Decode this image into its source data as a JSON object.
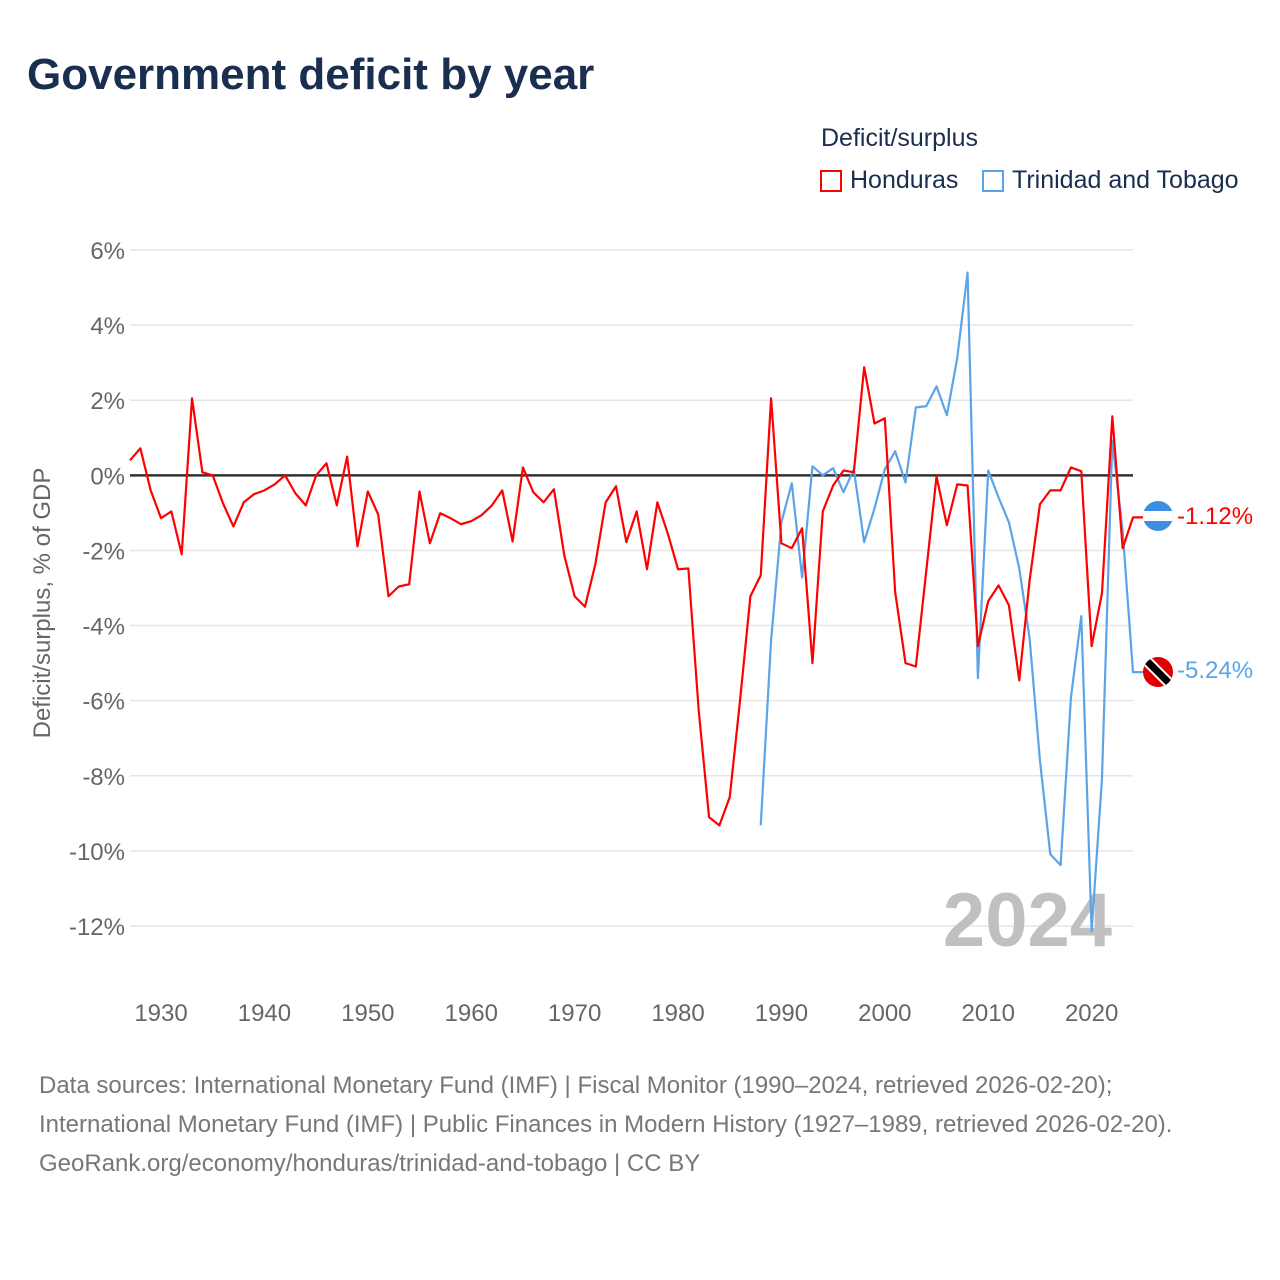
{
  "title": "Government deficit by year",
  "legend": {
    "title": "Deficit/surplus"
  },
  "colors": {
    "Honduras": "#ff0000",
    "Trinidad and Tobago": "#5ba4e8"
  },
  "year_watermark": "2024",
  "end_labels": {
    "Honduras": "-1.12%",
    "Trinidad and Tobago": "-5.24%"
  },
  "footer": {
    "sources": "Data sources: International Monetary Fund (IMF) | Fiscal Monitor (1990–2024, retrieved 2026-02-20); International Monetary Fund (IMF) | Public Finances in Modern History (1927–1989, retrieved 2026-02-20).",
    "credit": "GeoRank.org/economy/honduras/trinidad-and-tobago | CC BY"
  },
  "chart_data": {
    "type": "line",
    "title": "Government deficit by year",
    "xlabel": "",
    "ylabel": "Deficit/surplus, % of GDP",
    "xlim": [
      1927,
      2024
    ],
    "ylim": [
      -12,
      6
    ],
    "xticks": [
      1930,
      1940,
      1950,
      1960,
      1970,
      1980,
      1990,
      2000,
      2010,
      2020
    ],
    "yticks": [
      6,
      4,
      2,
      0,
      -2,
      -4,
      -6,
      -8,
      -10,
      -12
    ],
    "ytick_labels": [
      "6%",
      "4%",
      "2%",
      "0%",
      "-2%",
      "-4%",
      "-6%",
      "-8%",
      "-10%",
      "-12%"
    ],
    "grid": true,
    "legend_position": "top-right",
    "series": [
      {
        "name": "Honduras",
        "start_year": 1927,
        "values": [
          0.4,
          0.72,
          -0.4,
          -1.14,
          -0.96,
          -2.1,
          2.05,
          0.08,
          0.0,
          -0.75,
          -1.36,
          -0.72,
          -0.5,
          -0.4,
          -0.24,
          0.0,
          -0.48,
          -0.8,
          0.0,
          0.32,
          -0.8,
          0.5,
          -1.89,
          -0.43,
          -1.04,
          -3.22,
          -2.96,
          -2.9,
          -0.43,
          -1.81,
          -1.01,
          -1.14,
          -1.3,
          -1.22,
          -1.06,
          -0.8,
          -0.4,
          -1.76,
          0.21,
          -0.45,
          -0.72,
          -0.37,
          -2.13,
          -3.22,
          -3.5,
          -2.37,
          -0.72,
          -0.29,
          -1.78,
          -0.96,
          -2.5,
          -0.72,
          -1.54,
          -2.5,
          -2.48,
          -6.26,
          -9.1,
          -9.32,
          -8.57,
          -5.99,
          -3.22,
          -2.66,
          2.05,
          -1.81,
          -1.94,
          -1.41,
          -5.0,
          -0.96,
          -0.27,
          0.13,
          0.08,
          2.88,
          1.38,
          1.52,
          -3.11,
          -5.0,
          -5.09,
          -2.56,
          -0.03,
          -1.33,
          -0.24,
          -0.27,
          -4.55,
          -3.35,
          -2.93,
          -3.46,
          -5.46,
          -2.8,
          -0.77,
          -0.4,
          -0.4,
          0.21,
          0.11,
          -4.55,
          -3.14,
          1.57,
          -1.94,
          -1.12
        ]
      },
      {
        "name": "Trinidad and Tobago",
        "start_year": 1988,
        "values": [
          -9.32,
          -4.39,
          -1.25,
          -0.21,
          -2.72,
          0.24,
          0.0,
          0.19,
          -0.45,
          0.16,
          -1.78,
          -0.88,
          0.16,
          0.64,
          -0.19,
          1.81,
          1.84,
          2.37,
          1.6,
          3.12,
          5.4,
          -5.4,
          0.13,
          -0.59,
          -1.25,
          -2.48,
          -4.34,
          -7.59,
          -10.09,
          -10.38,
          -5.91,
          -3.75,
          -12.14,
          -8.07,
          0.93,
          -1.49,
          -5.24
        ]
      }
    ]
  }
}
